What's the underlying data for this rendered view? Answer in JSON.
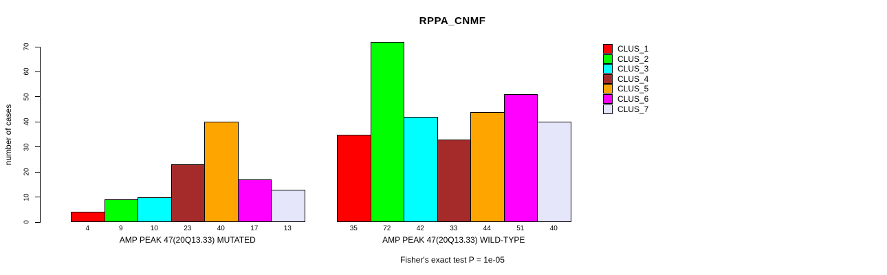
{
  "title": "RPPA_CNMF",
  "y_axis": {
    "label": "number of cases",
    "ticks": [
      0,
      10,
      20,
      30,
      40,
      50,
      60,
      70
    ]
  },
  "caption": "Fisher's exact test P = 1e-05",
  "legend": {
    "items": [
      {
        "label": "CLUS_1",
        "color": "#FF0000"
      },
      {
        "label": "CLUS_2",
        "color": "#00FF00"
      },
      {
        "label": "CLUS_3",
        "color": "#00FFFF"
      },
      {
        "label": "CLUS_4",
        "color": "#A52A2A"
      },
      {
        "label": "CLUS_5",
        "color": "#FFA500"
      },
      {
        "label": "CLUS_6",
        "color": "#FF00FF"
      },
      {
        "label": "CLUS_7",
        "color": "#E6E6FA"
      }
    ]
  },
  "chart_data": {
    "type": "bar",
    "title": "RPPA_CNMF",
    "xlabel": "",
    "ylabel": "number of cases",
    "ylim": [
      0,
      70
    ],
    "yticks": [
      0,
      10,
      20,
      30,
      40,
      50,
      60,
      70
    ],
    "grid": false,
    "legend_position": "right",
    "categories": [
      "CLUS_1",
      "CLUS_2",
      "CLUS_3",
      "CLUS_4",
      "CLUS_5",
      "CLUS_6",
      "CLUS_7"
    ],
    "series_colors": [
      "#FF0000",
      "#00FF00",
      "#00FFFF",
      "#A52A2A",
      "#FFA500",
      "#FF00FF",
      "#E6E6FA"
    ],
    "groups": [
      {
        "label": "AMP PEAK 47(20Q13.33) MUTATED",
        "values": [
          4,
          9,
          10,
          23,
          40,
          17,
          13
        ]
      },
      {
        "label": "AMP PEAK 47(20Q13.33) WILD-TYPE",
        "values": [
          35,
          72,
          42,
          33,
          44,
          51,
          40
        ]
      }
    ],
    "bar_value_labels_shown": true,
    "annotation": "Fisher's exact test P = 1e-05"
  }
}
